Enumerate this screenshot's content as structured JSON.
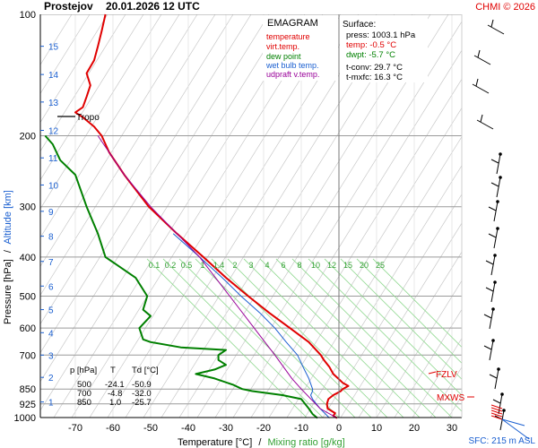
{
  "header": {
    "station": "Prostejov",
    "datetime": "20.01.2026 12 UTC",
    "copyright": "CHMI © 2026"
  },
  "legend": {
    "title": "EMAGRAM",
    "items": [
      {
        "label": "temperature",
        "color": "#e00000"
      },
      {
        "label": "virt.temp.",
        "color": "#e00000"
      },
      {
        "label": "dew point",
        "color": "#008000"
      },
      {
        "label": "wet bulb temp.",
        "color": "#1a5fd0"
      },
      {
        "label": "udpraft v.temp.",
        "color": "#990099"
      }
    ]
  },
  "surface_box": {
    "title": "Surface:",
    "press": "press: 1003.1 hPa",
    "temp": "temp: -0.5 °C",
    "dwpt": "dwpt: -5.7 °C",
    "tconv": "t-conv: 29.7 °C",
    "tmxfc": "t-mxfc: 16.3 °C"
  },
  "level_table": {
    "headers": [
      "p [hPa]",
      "T",
      "Td [°C]"
    ],
    "rows": [
      [
        "500",
        "-24.1",
        "-50.9"
      ],
      [
        "700",
        "-4.8",
        "-32.0"
      ],
      [
        "850",
        "1.0",
        "-25.7"
      ]
    ]
  },
  "annotations": {
    "tropo": "Tropo",
    "fzlv": "FZLV",
    "mxws": "MXWS",
    "sfc": "SFC: 215 m ASL"
  },
  "chart_data": {
    "type": "line",
    "title": "EMAGRAM",
    "xlabel": "Temperature [°C]",
    "xlabel_sep": "/",
    "xlabel2": "Mixing ratio [g/kg]",
    "ylabel": "Pressure [hPa]",
    "ylabel_sep": "/",
    "ylabel2": "Altitude [km]",
    "y_scale": "log",
    "xlim": [
      -80,
      32
    ],
    "ylim": [
      1000,
      100
    ],
    "x_ticks": [
      -70,
      -60,
      -50,
      -40,
      -30,
      -20,
      -10,
      0,
      10,
      20,
      30
    ],
    "p_ticks": [
      100,
      200,
      300,
      400,
      500,
      600,
      700,
      850,
      925,
      1000
    ],
    "alt_ticks": [
      {
        "label": "1",
        "p": 915
      },
      {
        "label": "2",
        "p": 795
      },
      {
        "label": "3",
        "p": 700
      },
      {
        "label": "4",
        "p": 616
      },
      {
        "label": "5",
        "p": 540
      },
      {
        "label": "6",
        "p": 472
      },
      {
        "label": "7",
        "p": 410
      },
      {
        "label": "8",
        "p": 355
      },
      {
        "label": "9",
        "p": 308
      },
      {
        "label": "10",
        "p": 265
      },
      {
        "label": "11",
        "p": 227
      },
      {
        "label": "12",
        "p": 194
      },
      {
        "label": "13",
        "p": 165
      },
      {
        "label": "14",
        "p": 141
      },
      {
        "label": "15",
        "p": 120
      }
    ],
    "mixing_ratio_labels": [
      "0.1",
      "0.2",
      "0.5",
      "1",
      "1.4",
      "2",
      "3",
      "4",
      "6",
      "8",
      "10",
      "12",
      "15",
      "20",
      "25"
    ],
    "series": [
      {
        "name": "temperature",
        "color": "#e00000",
        "points": [
          [
            1003,
            -0.5
          ],
          [
            990,
            -1.5
          ],
          [
            975,
            -1
          ],
          [
            950,
            -3
          ],
          [
            925,
            -3.2
          ],
          [
            900,
            -2.8
          ],
          [
            880,
            -1.5
          ],
          [
            860,
            0.5
          ],
          [
            850,
            1.0
          ],
          [
            835,
            2.5
          ],
          [
            820,
            1.0
          ],
          [
            780,
            -1.5
          ],
          [
            750,
            -2.5
          ],
          [
            720,
            -4
          ],
          [
            700,
            -4.8
          ],
          [
            650,
            -8
          ],
          [
            600,
            -13
          ],
          [
            550,
            -18.5
          ],
          [
            500,
            -24.1
          ],
          [
            450,
            -30
          ],
          [
            400,
            -36
          ],
          [
            350,
            -43
          ],
          [
            300,
            -50.5
          ],
          [
            250,
            -57
          ],
          [
            220,
            -61
          ],
          [
            200,
            -63
          ],
          [
            190,
            -65
          ],
          [
            180,
            -68
          ],
          [
            175,
            -70
          ],
          [
            170,
            -68
          ],
          [
            160,
            -67
          ],
          [
            150,
            -66
          ],
          [
            140,
            -67
          ],
          [
            130,
            -65
          ],
          [
            120,
            -64
          ],
          [
            110,
            -63
          ],
          [
            100,
            -62
          ]
        ]
      },
      {
        "name": "dew point",
        "color": "#008000",
        "points": [
          [
            1003,
            -5.7
          ],
          [
            980,
            -7
          ],
          [
            950,
            -8
          ],
          [
            925,
            -9
          ],
          [
            900,
            -10
          ],
          [
            880,
            -15
          ],
          [
            860,
            -23
          ],
          [
            850,
            -25.7
          ],
          [
            830,
            -28
          ],
          [
            800,
            -33
          ],
          [
            780,
            -38
          ],
          [
            760,
            -33
          ],
          [
            740,
            -30
          ],
          [
            720,
            -32
          ],
          [
            700,
            -32
          ],
          [
            680,
            -30
          ],
          [
            670,
            -42
          ],
          [
            650,
            -50
          ],
          [
            640,
            -52
          ],
          [
            600,
            -53
          ],
          [
            560,
            -50
          ],
          [
            540,
            -52
          ],
          [
            500,
            -50.9
          ],
          [
            450,
            -54
          ],
          [
            400,
            -62
          ],
          [
            350,
            -64
          ],
          [
            300,
            -67
          ],
          [
            250,
            -70
          ],
          [
            230,
            -74
          ],
          [
            210,
            -76
          ],
          [
            200,
            -78
          ]
        ]
      },
      {
        "name": "wet bulb temp.",
        "color": "#1a5fd0",
        "points": [
          [
            1003,
            -2.5
          ],
          [
            950,
            -5
          ],
          [
            925,
            -6
          ],
          [
            900,
            -7
          ],
          [
            880,
            -7.5
          ],
          [
            860,
            -7
          ],
          [
            850,
            -7
          ],
          [
            800,
            -8
          ],
          [
            750,
            -9.5
          ],
          [
            700,
            -11
          ],
          [
            650,
            -14
          ],
          [
            600,
            -17
          ],
          [
            550,
            -21
          ],
          [
            500,
            -26
          ],
          [
            450,
            -31
          ],
          [
            400,
            -37
          ],
          [
            350,
            -44
          ]
        ]
      },
      {
        "name": "udpraft v.temp.",
        "color": "#990099",
        "points": [
          [
            1003,
            -0.5
          ],
          [
            950,
            -5
          ],
          [
            850,
            -10
          ],
          [
            800,
            -12.5
          ],
          [
            700,
            -17
          ],
          [
            600,
            -22.5
          ],
          [
            500,
            -29
          ],
          [
            400,
            -37
          ],
          [
            350,
            -43
          ],
          [
            300,
            -50
          ],
          [
            250,
            -57
          ],
          [
            200,
            -64
          ]
        ]
      }
    ]
  }
}
